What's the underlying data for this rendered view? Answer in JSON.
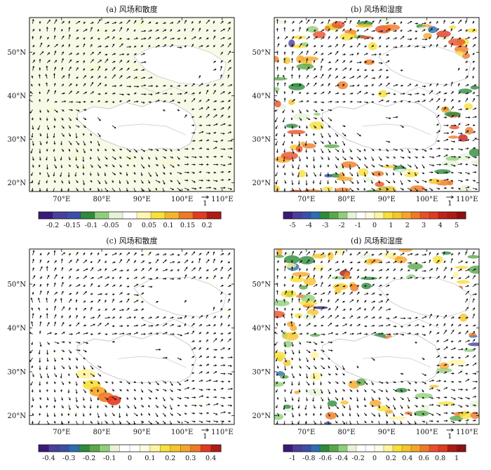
{
  "panels": [
    {
      "id": "a",
      "title": "(a) 风场和散度",
      "field": "divergence",
      "colorbar_labels": [
        "-0.2",
        "-0.15",
        "-0.1",
        "-0.05",
        "0",
        "0.05",
        "0.1",
        "0.15",
        "0.2"
      ],
      "colorbar_values": [
        -0.2,
        -0.15,
        -0.1,
        -0.05,
        0,
        0.05,
        0.1,
        0.15,
        0.2
      ],
      "colorbar_colors": [
        "#3a1a78",
        "#4a3f9a",
        "#3b4fa8",
        "#2e8b3c",
        "#8fcf7a",
        "#e7f3d7",
        "#ffffff",
        "#fff7b0",
        "#f7e03a",
        "#f5b52a",
        "#ef7a25",
        "#e33a1f",
        "#b01a14"
      ],
      "vector_ref": "1"
    },
    {
      "id": "b",
      "title": "(b) 风场和湿度",
      "field": "humidity",
      "colorbar_labels": [
        "-5",
        "-4",
        "-3",
        "-2",
        "-1",
        "0",
        "1",
        "2",
        "3",
        "4",
        "5"
      ],
      "colorbar_values": [
        -5,
        -4,
        -3,
        -2,
        -1,
        0,
        1,
        2,
        3,
        4,
        5
      ],
      "colorbar_colors": [
        "#3a1a78",
        "#4a3f9a",
        "#3b4fa8",
        "#2a6fb0",
        "#2e8b3c",
        "#5aa84a",
        "#8fcf7a",
        "#e7f3d7",
        "#ffffff",
        "#fffbe0",
        "#fff4a0",
        "#f7e03a",
        "#f5c52a",
        "#f5a62a",
        "#ef7a25",
        "#e8502a",
        "#e33a1f",
        "#c22018",
        "#b01a14",
        "#901010"
      ],
      "vector_ref": "1"
    },
    {
      "id": "c",
      "title": "(c) 风场和散度",
      "field": "divergence",
      "colorbar_labels": [
        "-0.4",
        "-0.3",
        "-0.2",
        "-0.1",
        "0",
        "0.1",
        "0.2",
        "0.3",
        "0.4"
      ],
      "colorbar_values": [
        -0.4,
        -0.3,
        -0.2,
        -0.1,
        0,
        0.1,
        0.2,
        0.3,
        0.4
      ],
      "colorbar_colors": [
        "#3a1a78",
        "#4a3f9a",
        "#3b4fa8",
        "#2a6fb0",
        "#2e8b3c",
        "#5aa84a",
        "#8fcf7a",
        "#e7f3d7",
        "#ffffff",
        "#ffffff",
        "#fffbe0",
        "#fff4a0",
        "#f7e03a",
        "#f5c52a",
        "#f5a62a",
        "#ef7a25",
        "#e33a1f",
        "#b01a14"
      ],
      "vector_ref": "1"
    },
    {
      "id": "d",
      "title": "(d) 风场和湿度",
      "field": "humidity",
      "colorbar_labels": [
        "-1",
        "-0.8",
        "-0.6",
        "-0.4",
        "-0.2",
        "0",
        "0.2",
        "0.4",
        "0.6",
        "0.8",
        "1"
      ],
      "colorbar_values": [
        -1,
        -0.8,
        -0.6,
        -0.4,
        -0.2,
        0,
        0.2,
        0.4,
        0.6,
        0.8,
        1
      ],
      "colorbar_colors": [
        "#3a1a78",
        "#4a3f9a",
        "#3b4fa8",
        "#2a6fb0",
        "#2e8b3c",
        "#5aa84a",
        "#8fcf7a",
        "#e7f3d7",
        "#ffffff",
        "#ffffff",
        "#fffbe0",
        "#fff4a0",
        "#f7e03a",
        "#f5c52a",
        "#f5a62a",
        "#ef7a25",
        "#e8502a",
        "#e33a1f",
        "#b01a14",
        "#901010"
      ],
      "vector_ref": "1"
    }
  ],
  "x_ticks": [
    "70°E",
    "80°E",
    "90°E",
    "100°E",
    "110°E"
  ],
  "y_ticks": [
    "20°N",
    "30°N",
    "40°N",
    "50°N"
  ],
  "chart_data": [
    {
      "type": "heatmap",
      "title": "(a) 风场和散度",
      "xlim": [
        62,
        113
      ],
      "ylim": [
        18,
        58
      ],
      "x_tick_values": [
        70,
        80,
        90,
        100,
        110
      ],
      "y_tick_values": [
        20,
        30,
        40,
        50
      ],
      "colorbar_values": [
        -0.2,
        -0.15,
        -0.1,
        -0.05,
        0,
        0.05,
        0.1,
        0.15,
        0.2
      ],
      "overlay": "wind vectors"
    },
    {
      "type": "heatmap",
      "title": "(b) 风场和湿度",
      "xlim": [
        62,
        113
      ],
      "ylim": [
        18,
        58
      ],
      "x_tick_values": [
        70,
        80,
        90,
        100,
        110
      ],
      "y_tick_values": [
        20,
        30,
        40,
        50
      ],
      "colorbar_values": [
        -5,
        -4,
        -3,
        -2,
        -1,
        0,
        1,
        2,
        3,
        4,
        5
      ],
      "overlay": "wind vectors"
    },
    {
      "type": "heatmap",
      "title": "(c) 风场和散度",
      "xlim": [
        62,
        113
      ],
      "ylim": [
        18,
        58
      ],
      "x_tick_values": [
        70,
        80,
        90,
        100,
        110
      ],
      "y_tick_values": [
        20,
        30,
        40,
        50
      ],
      "colorbar_values": [
        -0.4,
        -0.3,
        -0.2,
        -0.1,
        0,
        0.1,
        0.2,
        0.3,
        0.4
      ],
      "overlay": "wind vectors"
    },
    {
      "type": "heatmap",
      "title": "(d) 风场和湿度",
      "xlim": [
        62,
        113
      ],
      "ylim": [
        18,
        58
      ],
      "x_tick_values": [
        70,
        80,
        90,
        100,
        110
      ],
      "y_tick_values": [
        20,
        30,
        40,
        50
      ],
      "colorbar_values": [
        -1,
        -0.8,
        -0.6,
        -0.4,
        -0.2,
        0,
        0.2,
        0.4,
        0.6,
        0.8,
        1
      ],
      "overlay": "wind vectors"
    }
  ]
}
